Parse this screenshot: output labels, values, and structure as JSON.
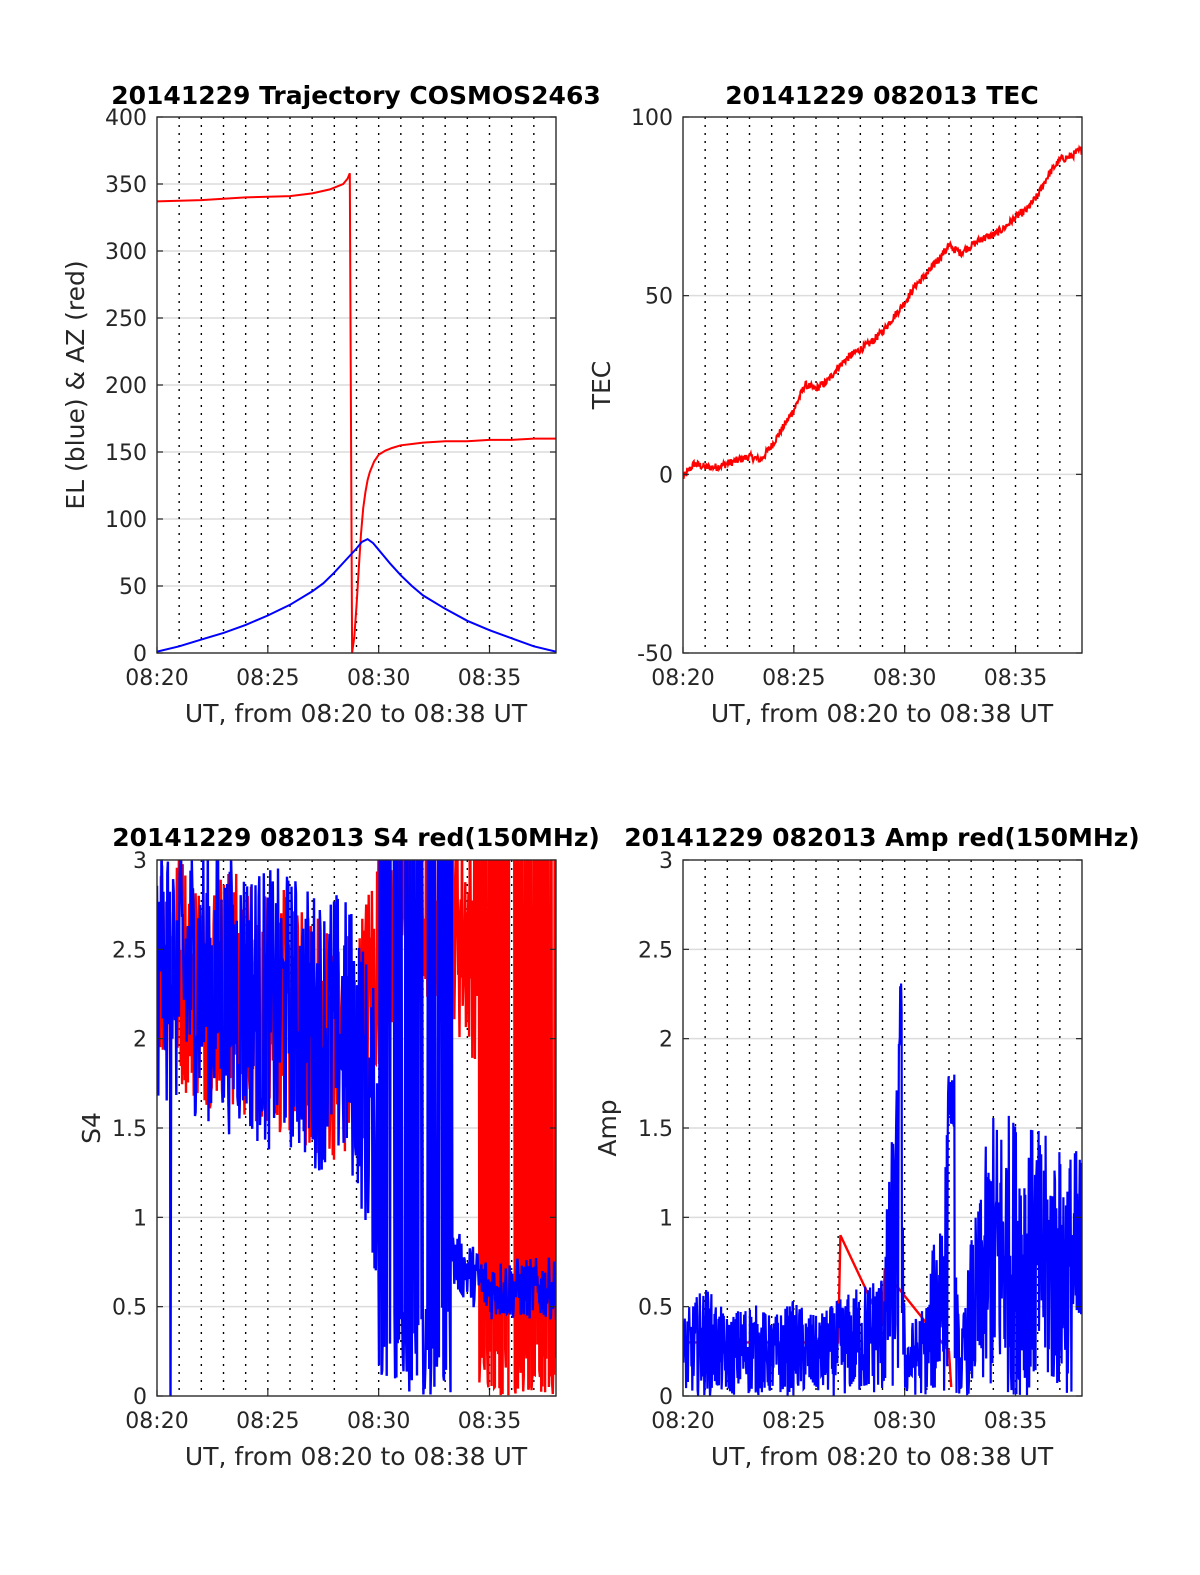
{
  "colors": {
    "red": "#ff0000",
    "blue": "#0000ff",
    "axis": "#262626",
    "grid": "#dcdcdc"
  },
  "chart_data": [
    {
      "id": "trajectory",
      "type": "line",
      "title": "20141229 Trajectory COSMOS2463",
      "xlabel": "UT, from 08:20 to 08:38 UT",
      "ylabel": "EL (blue) & AZ (red)",
      "xlim": [
        0,
        18
      ],
      "ylim": [
        0,
        400
      ],
      "xticks": [
        0,
        5,
        10,
        15
      ],
      "xticklabels": [
        "08:20",
        "08:25",
        "08:30",
        "08:35"
      ],
      "yticks": [
        0,
        50,
        100,
        150,
        200,
        250,
        300,
        350,
        400
      ],
      "yticklabels": [
        "0",
        "50",
        "100",
        "150",
        "200",
        "250",
        "300",
        "350",
        "400"
      ],
      "grid": "horizontal solid, vertical dotted every minute",
      "series": [
        {
          "color": "#ff0000",
          "x": [
            "08:20:00",
            "08:22:00",
            "08:24:00",
            "08:26:00",
            "08:27:00",
            "08:27:48",
            "08:28:24",
            "08:28:36",
            "08:28:42",
            "08:28:48",
            "08:28:54",
            "08:29:00",
            "08:29:06",
            "08:29:12",
            "08:29:18",
            "08:29:24",
            "08:29:30",
            "08:29:36",
            "08:29:48",
            "08:30:00",
            "08:30:18",
            "08:30:36",
            "08:31:00",
            "08:31:30",
            "08:32:00",
            "08:33:00",
            "08:34:00",
            "08:35:00",
            "08:36:00",
            "08:37:00",
            "08:38:00"
          ],
          "values": [
            337,
            338,
            340,
            341,
            343,
            346,
            350,
            354,
            358,
            0,
            12,
            35,
            62,
            88,
            108,
            120,
            129,
            135,
            143,
            148,
            151,
            153,
            155,
            156,
            157,
            158,
            158,
            159,
            159,
            160,
            160
          ]
        },
        {
          "color": "#0000ff",
          "x": [
            "08:20:00",
            "08:21:00",
            "08:22:00",
            "08:23:00",
            "08:24:00",
            "08:25:00",
            "08:26:00",
            "08:27:00",
            "08:27:30",
            "08:28:00",
            "08:28:30",
            "08:29:00",
            "08:29:15",
            "08:29:30",
            "08:29:45",
            "08:30:00",
            "08:30:30",
            "08:31:00",
            "08:31:30",
            "08:32:00",
            "08:33:00",
            "08:34:00",
            "08:35:00",
            "08:36:00",
            "08:37:00",
            "08:38:00"
          ],
          "values": [
            1,
            5,
            10,
            15,
            21,
            28,
            36,
            46,
            52,
            60,
            69,
            78,
            83,
            85,
            82,
            77,
            67,
            58,
            50,
            43,
            33,
            24,
            17,
            11,
            5,
            1
          ]
        }
      ]
    },
    {
      "id": "tec",
      "type": "line",
      "title": "20141229 082013 TEC",
      "xlabel": "UT, from 08:20 to 08:38 UT",
      "ylabel": "TEC",
      "xlim": [
        0,
        18
      ],
      "ylim": [
        -50,
        100
      ],
      "xticks": [
        0,
        5,
        10,
        15
      ],
      "xticklabels": [
        "08:20",
        "08:25",
        "08:30",
        "08:35"
      ],
      "yticks": [
        -50,
        0,
        50,
        100
      ],
      "yticklabels": [
        "-50",
        "0",
        "50",
        "100"
      ],
      "grid": "horizontal solid, vertical dotted every minute",
      "series": [
        {
          "color": "#ff0000",
          "x": [
            "08:20:00",
            "08:20:30",
            "08:21:00",
            "08:21:30",
            "08:22:00",
            "08:22:30",
            "08:23:00",
            "08:23:30",
            "08:24:00",
            "08:24:30",
            "08:25:00",
            "08:25:30",
            "08:26:00",
            "08:26:30",
            "08:27:00",
            "08:27:30",
            "08:28:00",
            "08:28:30",
            "08:29:00",
            "08:29:30",
            "08:30:00",
            "08:30:30",
            "08:31:00",
            "08:31:30",
            "08:32:00",
            "08:32:30",
            "08:33:00",
            "08:33:30",
            "08:34:00",
            "08:34:30",
            "08:35:00",
            "08:35:30",
            "08:36:00",
            "08:36:30",
            "08:37:00",
            "08:37:30",
            "08:38:00"
          ],
          "values": [
            -1,
            3,
            2,
            2,
            3,
            4,
            5,
            4,
            8,
            13,
            18,
            25,
            24,
            26,
            30,
            33,
            35,
            37,
            40,
            44,
            48,
            53,
            56,
            60,
            64,
            62,
            64,
            66,
            67,
            69,
            72,
            74,
            78,
            84,
            88,
            89,
            91
          ]
        }
      ]
    },
    {
      "id": "s4",
      "type": "line",
      "title": "20141229 082013 S4 red(150MHz)",
      "xlabel": "UT, from 08:20 to 08:38 UT",
      "ylabel": "S4",
      "xlim": [
        0,
        18
      ],
      "ylim": [
        0,
        3
      ],
      "xticks": [
        0,
        5,
        10,
        15
      ],
      "xticklabels": [
        "08:20",
        "08:25",
        "08:30",
        "08:35"
      ],
      "yticks": [
        0,
        0.5,
        1,
        1.5,
        2,
        2.5,
        3
      ],
      "yticklabels": [
        "0",
        "0.5",
        "1",
        "1.5",
        "2",
        "2.5",
        "3"
      ],
      "grid": "horizontal solid, vertical dotted every minute",
      "series": [
        {
          "color": "#ff0000",
          "x": [
            "08:20:00",
            "08:21:00",
            "08:22:00",
            "08:23:00",
            "08:24:00",
            "08:25:00",
            "08:26:00",
            "08:27:00",
            "08:28:00",
            "08:29:00",
            "08:30:00",
            "08:31:00",
            "08:32:00",
            "08:33:00",
            "08:34:00",
            "08:35:00",
            "08:36:00",
            "08:37:00",
            "08:38:00"
          ],
          "values": [
            2.3,
            2.2,
            2.1,
            2.1,
            2.0,
            2.0,
            1.9,
            1.8,
            1.8,
            1.7,
            2.3,
            2.4,
            2.5,
            2.5,
            2.4,
            2.3,
            2.2,
            2.1,
            2.0
          ]
        },
        {
          "color": "#0000ff",
          "x": [
            "08:20:00",
            "08:21:00",
            "08:22:00",
            "08:23:00",
            "08:24:00",
            "08:25:00",
            "08:26:00",
            "08:27:00",
            "08:28:00",
            "08:29:00",
            "08:30:00",
            "08:31:00",
            "08:32:00",
            "08:33:00",
            "08:34:00",
            "08:35:00",
            "08:36:00",
            "08:37:00",
            "08:38:00"
          ],
          "values": [
            2.3,
            2.2,
            2.2,
            2.1,
            2.1,
            2.0,
            2.0,
            1.9,
            1.9,
            1.8,
            1.2,
            1.0,
            0.9,
            0.8,
            0.7,
            0.6,
            0.6,
            0.6,
            0.6
          ]
        }
      ]
    },
    {
      "id": "amp",
      "type": "line",
      "title": "20141229 082013 Amp red(150MHz)",
      "xlabel": "UT, from 08:20 to 08:38 UT",
      "ylabel": "Amp",
      "xlim": [
        0,
        18
      ],
      "ylim": [
        0,
        3
      ],
      "xticks": [
        0,
        5,
        10,
        15
      ],
      "xticklabels": [
        "08:20",
        "08:25",
        "08:30",
        "08:35"
      ],
      "yticks": [
        0,
        0.5,
        1,
        1.5,
        2,
        2.5,
        3
      ],
      "yticklabels": [
        "0",
        "0.5",
        "1",
        "1.5",
        "2",
        "2.5",
        "3"
      ],
      "grid": "horizontal solid, vertical dotted every minute",
      "series": [
        {
          "color": "#ff0000",
          "x": [
            "08:20:00",
            "08:27:00",
            "08:27:06",
            "08:29:00",
            "08:29:06",
            "08:32:00",
            "08:32:06"
          ],
          "values": [
            0.3,
            0.3,
            0.9,
            0.4,
            0.7,
            0.25,
            0.05
          ]
        },
        {
          "color": "#0000ff",
          "x": [
            "08:20:00",
            "08:21:00",
            "08:22:00",
            "08:23:00",
            "08:24:00",
            "08:25:00",
            "08:26:00",
            "08:27:00",
            "08:28:00",
            "08:29:00",
            "08:29:48",
            "08:30:00",
            "08:31:00",
            "08:32:00",
            "08:32:30",
            "08:33:00",
            "08:34:00",
            "08:35:00",
            "08:36:00",
            "08:37:00",
            "08:38:00"
          ],
          "values": [
            0.5,
            0.7,
            0.5,
            0.6,
            0.5,
            0.6,
            0.5,
            0.6,
            0.7,
            0.8,
            2.35,
            0.4,
            0.6,
            1.8,
            0.3,
            1.0,
            1.6,
            1.6,
            1.5,
            1.4,
            1.4
          ]
        }
      ]
    }
  ]
}
